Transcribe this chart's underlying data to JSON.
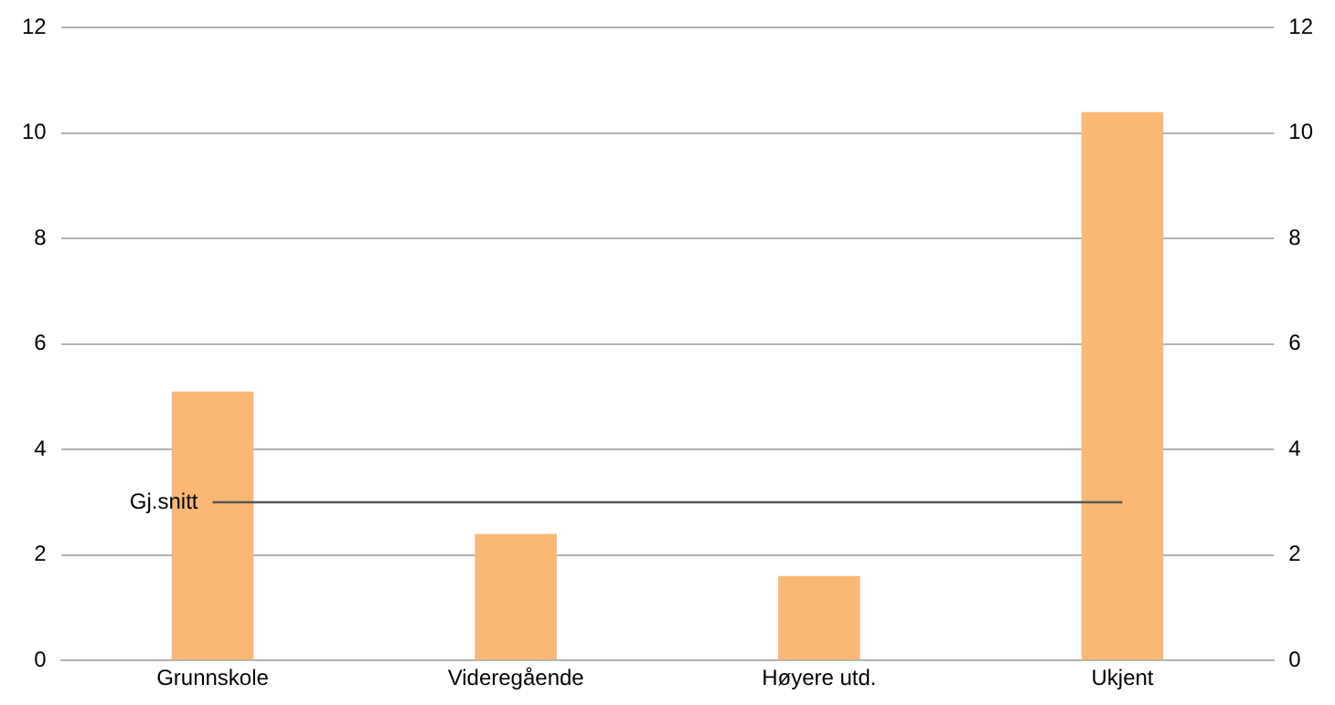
{
  "chart_data": {
    "type": "bar",
    "categories": [
      "Grunnskole",
      "Videregående",
      "Høyere utd.",
      "Ukjent"
    ],
    "values": [
      5.1,
      2.4,
      1.6,
      10.4
    ],
    "color": "#fbb874",
    "ylim": [
      0,
      12
    ],
    "yticks": [
      0,
      2,
      4,
      6,
      8,
      10,
      12
    ],
    "y2lim": [
      0,
      12
    ],
    "y2ticks": [
      0,
      2,
      4,
      6,
      8,
      10,
      12
    ],
    "grid": "y",
    "ref_lines": [
      {
        "axis": "y",
        "value": 3,
        "label": "Gj.snitt",
        "color": "#555555"
      }
    ]
  }
}
